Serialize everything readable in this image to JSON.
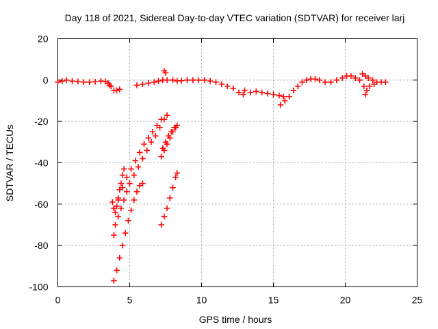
{
  "chart_data": {
    "type": "scatter",
    "title": "Day 118 of 2021, Sidereal Day-to-day VTEC variation (SDTVAR) for receiver larj",
    "xlabel": "GPS time / hours",
    "ylabel": "SDTVAR / TECUs",
    "xlim": [
      0,
      25
    ],
    "ylim": [
      -100,
      20
    ],
    "xticks": [
      "0",
      "5",
      "10",
      "15",
      "20",
      "25"
    ],
    "yticks": [
      "-100",
      "-80",
      "-60",
      "-40",
      "-20",
      "0",
      "20"
    ],
    "grid": true,
    "marker": "plus",
    "color": "#ff0000",
    "series": [
      {
        "points": [
          [
            0.0,
            -1
          ],
          [
            0.3,
            -0.5
          ],
          [
            0.6,
            0
          ],
          [
            1.0,
            -0.5
          ],
          [
            1.4,
            -0.7
          ],
          [
            1.8,
            -1
          ],
          [
            2.2,
            -1
          ],
          [
            2.6,
            -0.8
          ],
          [
            3.0,
            -0.5
          ],
          [
            3.3,
            -0.7
          ],
          [
            3.5,
            -1.5
          ],
          [
            3.6,
            -2.5
          ],
          [
            3.7,
            -3
          ],
          [
            3.9,
            -5
          ],
          [
            4.1,
            -5
          ],
          [
            4.3,
            -4.5
          ],
          [
            5.5,
            -2.5
          ],
          [
            5.9,
            -2
          ],
          [
            6.3,
            -1.5
          ],
          [
            6.7,
            -1
          ],
          [
            7.0,
            -0.5
          ],
          [
            7.3,
            0
          ],
          [
            7.6,
            0
          ],
          [
            8.0,
            0
          ],
          [
            8.3,
            -0.5
          ],
          [
            8.6,
            -0.3
          ],
          [
            7.4,
            4.5
          ],
          [
            7.5,
            3.5
          ],
          [
            9.0,
            0
          ],
          [
            9.4,
            0
          ],
          [
            9.8,
            0
          ],
          [
            10.2,
            0
          ],
          [
            10.6,
            -0.5
          ],
          [
            11.0,
            -1
          ],
          [
            11.4,
            -2
          ],
          [
            11.8,
            -3
          ],
          [
            12.2,
            -4
          ],
          [
            12.6,
            -6
          ],
          [
            12.9,
            -7
          ],
          [
            13.0,
            -5
          ],
          [
            13.4,
            -6
          ],
          [
            13.8,
            -5.5
          ],
          [
            14.2,
            -6
          ],
          [
            14.6,
            -6.5
          ],
          [
            15.0,
            -7
          ],
          [
            15.4,
            -7.5
          ],
          [
            15.7,
            -8
          ],
          [
            15.5,
            -12
          ],
          [
            15.8,
            -10
          ],
          [
            16.1,
            -8
          ],
          [
            16.4,
            -5
          ],
          [
            16.7,
            -3
          ],
          [
            17.0,
            -1
          ],
          [
            17.3,
            0
          ],
          [
            17.6,
            0.5
          ],
          [
            17.9,
            0.5
          ],
          [
            18.2,
            0
          ],
          [
            18.6,
            -1
          ],
          [
            19.0,
            -1
          ],
          [
            19.4,
            0
          ],
          [
            19.8,
            1
          ],
          [
            20.1,
            2
          ],
          [
            20.4,
            2
          ],
          [
            20.7,
            1
          ],
          [
            21.0,
            0
          ],
          [
            21.2,
            3
          ],
          [
            21.4,
            2
          ],
          [
            21.6,
            1
          ],
          [
            21.9,
            0
          ],
          [
            22.2,
            -1
          ],
          [
            22.5,
            -1
          ],
          [
            22.8,
            -1
          ],
          [
            21.3,
            -3
          ],
          [
            21.5,
            -5
          ],
          [
            21.4,
            -7
          ],
          [
            21.7,
            -3
          ],
          [
            22.0,
            -2
          ],
          [
            3.8,
            -59
          ],
          [
            3.9,
            -62
          ],
          [
            4.0,
            -64
          ],
          [
            4.1,
            -61
          ],
          [
            4.2,
            -58
          ],
          [
            4.3,
            -53
          ],
          [
            4.4,
            -50
          ],
          [
            4.5,
            -46
          ],
          [
            4.6,
            -43
          ],
          [
            3.9,
            -75
          ],
          [
            4.0,
            -70
          ],
          [
            4.2,
            -66
          ],
          [
            4.4,
            -62
          ],
          [
            4.6,
            -58
          ],
          [
            4.8,
            -54
          ],
          [
            5.0,
            -50
          ],
          [
            5.3,
            -46
          ],
          [
            5.6,
            -42
          ],
          [
            5.9,
            -38
          ],
          [
            6.2,
            -34
          ],
          [
            6.5,
            -30
          ],
          [
            6.8,
            -27
          ],
          [
            7.1,
            -23
          ],
          [
            7.4,
            -19
          ],
          [
            7.6,
            -17
          ],
          [
            3.9,
            -62
          ],
          [
            4.2,
            -57
          ],
          [
            4.5,
            -52
          ],
          [
            4.8,
            -47
          ],
          [
            5.1,
            -43
          ],
          [
            5.4,
            -39
          ],
          [
            5.7,
            -35
          ],
          [
            6.0,
            -31
          ],
          [
            6.3,
            -28
          ],
          [
            6.6,
            -25
          ],
          [
            6.9,
            -22
          ],
          [
            7.2,
            -19
          ],
          [
            3.9,
            -97
          ],
          [
            4.1,
            -92
          ],
          [
            4.3,
            -86
          ],
          [
            4.5,
            -80
          ],
          [
            4.7,
            -74
          ],
          [
            4.9,
            -68
          ],
          [
            5.1,
            -63
          ],
          [
            5.3,
            -58
          ],
          [
            5.5,
            -54
          ],
          [
            5.7,
            -51
          ],
          [
            5.9,
            -50
          ],
          [
            7.2,
            -37
          ],
          [
            7.4,
            -34
          ],
          [
            7.6,
            -31
          ],
          [
            7.8,
            -28
          ],
          [
            8.0,
            -25
          ],
          [
            8.2,
            -23
          ],
          [
            8.3,
            -22
          ],
          [
            7.3,
            -33
          ],
          [
            7.5,
            -30
          ],
          [
            7.7,
            -27
          ],
          [
            7.9,
            -25
          ],
          [
            8.1,
            -23
          ],
          [
            7.2,
            -70
          ],
          [
            7.4,
            -66
          ],
          [
            7.6,
            -62
          ],
          [
            7.8,
            -57
          ],
          [
            8.0,
            -52
          ],
          [
            8.2,
            -47
          ],
          [
            8.3,
            -45
          ]
        ]
      }
    ]
  }
}
